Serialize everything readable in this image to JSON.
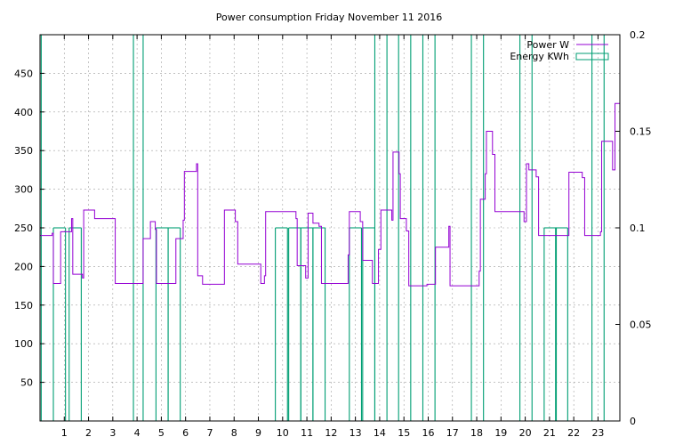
{
  "chart_data": {
    "type": "line",
    "title": "Power consumption Friday November 11 2016",
    "xlabel": "",
    "ylabel": "",
    "xlim": [
      0,
      23.9
    ],
    "ylim": [
      0,
      500
    ],
    "y2lim": [
      0,
      0.2
    ],
    "x_ticks": [
      1,
      2,
      3,
      4,
      5,
      6,
      7,
      8,
      9,
      10,
      11,
      12,
      13,
      14,
      15,
      16,
      17,
      18,
      19,
      20,
      21,
      22,
      23
    ],
    "y_ticks": [
      50,
      100,
      150,
      200,
      250,
      300,
      350,
      400,
      450
    ],
    "y2_ticks": [
      0,
      0.05,
      0.1,
      0.15,
      0.2
    ],
    "y2_tick_labels": [
      "0",
      "0.05",
      "0.1",
      "0.15",
      "0.2"
    ],
    "grid": true,
    "legend_position": "top-right",
    "series": [
      {
        "name": "Power W",
        "type": "step",
        "axis": "y",
        "color": "#9400D3",
        "points": [
          [
            0.0,
            240
          ],
          [
            0.5,
            243
          ],
          [
            0.55,
            178
          ],
          [
            0.85,
            245
          ],
          [
            1.3,
            262
          ],
          [
            1.35,
            190
          ],
          [
            1.75,
            185
          ],
          [
            1.8,
            273
          ],
          [
            2.25,
            262
          ],
          [
            3.1,
            178
          ],
          [
            4.25,
            236
          ],
          [
            4.55,
            258
          ],
          [
            4.75,
            248
          ],
          [
            4.8,
            178
          ],
          [
            5.6,
            236
          ],
          [
            5.9,
            260
          ],
          [
            5.95,
            323
          ],
          [
            6.45,
            333
          ],
          [
            6.5,
            188
          ],
          [
            6.7,
            177
          ],
          [
            7.6,
            273
          ],
          [
            8.05,
            258
          ],
          [
            8.15,
            203
          ],
          [
            9.1,
            178
          ],
          [
            9.25,
            188
          ],
          [
            9.3,
            271
          ],
          [
            10.55,
            262
          ],
          [
            10.6,
            201
          ],
          [
            10.95,
            185
          ],
          [
            11.05,
            269
          ],
          [
            11.25,
            256
          ],
          [
            11.5,
            252
          ],
          [
            11.6,
            178
          ],
          [
            12.7,
            215
          ],
          [
            12.75,
            271
          ],
          [
            13.2,
            258
          ],
          [
            13.3,
            208
          ],
          [
            13.7,
            178
          ],
          [
            13.95,
            222
          ],
          [
            14.05,
            273
          ],
          [
            14.5,
            260
          ],
          [
            14.55,
            348
          ],
          [
            14.8,
            320
          ],
          [
            14.85,
            262
          ],
          [
            15.1,
            246
          ],
          [
            15.2,
            175
          ],
          [
            15.95,
            177
          ],
          [
            16.3,
            225
          ],
          [
            16.85,
            252
          ],
          [
            16.9,
            175
          ],
          [
            18.1,
            194
          ],
          [
            18.15,
            287
          ],
          [
            18.35,
            320
          ],
          [
            18.4,
            375
          ],
          [
            18.65,
            345
          ],
          [
            18.75,
            271
          ],
          [
            19.95,
            258
          ],
          [
            20.05,
            333
          ],
          [
            20.15,
            325
          ],
          [
            20.45,
            316
          ],
          [
            20.55,
            240
          ],
          [
            21.8,
            322
          ],
          [
            22.35,
            315
          ],
          [
            22.45,
            240
          ],
          [
            23.1,
            245
          ],
          [
            23.15,
            362
          ],
          [
            23.6,
            325
          ],
          [
            23.7,
            411
          ],
          [
            23.9,
            411
          ]
        ]
      },
      {
        "name": "Energy KWh",
        "type": "bars",
        "axis": "y2",
        "color": "#009E73",
        "points": [
          [
            0.05,
            0.2
          ],
          [
            0.55,
            0.1
          ],
          [
            1.2,
            0.1
          ],
          [
            3.85,
            0.2
          ],
          [
            4.25,
            0.2
          ],
          [
            4.78,
            0.1
          ],
          [
            5.28,
            0.1
          ],
          [
            9.7,
            0.1
          ],
          [
            10.25,
            0.1
          ],
          [
            10.75,
            0.1
          ],
          [
            11.25,
            0.1
          ],
          [
            12.75,
            0.1
          ],
          [
            13.3,
            0.1
          ],
          [
            13.8,
            0.2
          ],
          [
            14.3,
            0.2
          ],
          [
            14.78,
            0.2
          ],
          [
            15.28,
            0.2
          ],
          [
            15.78,
            0.2
          ],
          [
            16.28,
            0.2
          ],
          [
            17.78,
            0.2
          ],
          [
            18.28,
            0.2
          ],
          [
            19.78,
            0.2
          ],
          [
            20.28,
            0.2
          ],
          [
            20.78,
            0.1
          ],
          [
            21.25,
            0.1
          ],
          [
            22.75,
            0.2
          ],
          [
            23.25,
            0.2
          ]
        ]
      }
    ]
  }
}
